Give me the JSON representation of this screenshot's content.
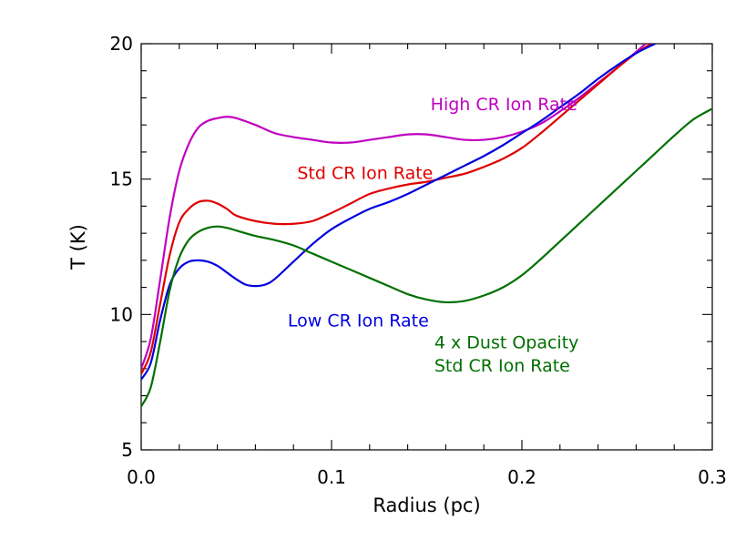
{
  "chart_data": {
    "type": "line",
    "xlabel": "Radius (pc)",
    "ylabel": "T (K)",
    "xlim": [
      0.0,
      0.3
    ],
    "ylim": [
      5,
      20
    ],
    "grid": false,
    "legend": "none",
    "x_ticks": [
      {
        "value": 0.0,
        "label": "0.0"
      },
      {
        "value": 0.1,
        "label": "0.1"
      },
      {
        "value": 0.2,
        "label": "0.2"
      },
      {
        "value": 0.3,
        "label": "0.3"
      }
    ],
    "y_ticks": [
      {
        "value": 5,
        "label": "5"
      },
      {
        "value": 10,
        "label": "10"
      },
      {
        "value": 15,
        "label": "15"
      },
      {
        "value": 20,
        "label": "20"
      }
    ],
    "series": [
      {
        "color": "#c000c0",
        "x": [
          0,
          0.005,
          0.01,
          0.015,
          0.02,
          0.025,
          0.03,
          0.035,
          0.04,
          0.045,
          0.05,
          0.06,
          0.07,
          0.08,
          0.09,
          0.1,
          0.11,
          0.12,
          0.13,
          0.14,
          0.15,
          0.16,
          0.17,
          0.18,
          0.19,
          0.2,
          0.21,
          0.22,
          0.23,
          0.24,
          0.25,
          0.26,
          0.265
        ],
        "y": [
          8.0,
          9.1,
          11.3,
          13.6,
          15.3,
          16.3,
          16.9,
          17.15,
          17.25,
          17.3,
          17.25,
          17.0,
          16.7,
          16.55,
          16.45,
          16.35,
          16.35,
          16.45,
          16.55,
          16.65,
          16.65,
          16.55,
          16.45,
          16.45,
          16.55,
          16.75,
          17.05,
          17.5,
          18.0,
          18.55,
          19.1,
          19.7,
          20.0
        ]
      },
      {
        "color": "#e00000",
        "x": [
          0,
          0.005,
          0.01,
          0.015,
          0.02,
          0.025,
          0.03,
          0.035,
          0.04,
          0.045,
          0.05,
          0.06,
          0.07,
          0.08,
          0.09,
          0.1,
          0.11,
          0.12,
          0.13,
          0.14,
          0.15,
          0.16,
          0.17,
          0.18,
          0.19,
          0.2,
          0.21,
          0.22,
          0.23,
          0.24,
          0.25,
          0.26,
          0.268
        ],
        "y": [
          7.8,
          8.6,
          10.4,
          12.2,
          13.4,
          13.9,
          14.15,
          14.2,
          14.1,
          13.9,
          13.65,
          13.45,
          13.35,
          13.35,
          13.45,
          13.75,
          14.1,
          14.45,
          14.65,
          14.8,
          14.9,
          15.05,
          15.2,
          15.45,
          15.75,
          16.15,
          16.7,
          17.3,
          17.9,
          18.5,
          19.1,
          19.65,
          20.0
        ]
      },
      {
        "color": "#0000e0",
        "x": [
          0,
          0.005,
          0.01,
          0.015,
          0.02,
          0.025,
          0.03,
          0.035,
          0.04,
          0.045,
          0.05,
          0.055,
          0.06,
          0.065,
          0.07,
          0.08,
          0.09,
          0.1,
          0.11,
          0.12,
          0.13,
          0.14,
          0.15,
          0.16,
          0.17,
          0.18,
          0.19,
          0.2,
          0.21,
          0.22,
          0.23,
          0.24,
          0.25,
          0.26,
          0.27
        ],
        "y": [
          7.6,
          8.2,
          9.8,
          11.1,
          11.7,
          11.95,
          12.0,
          11.95,
          11.8,
          11.55,
          11.3,
          11.1,
          11.05,
          11.1,
          11.3,
          11.95,
          12.6,
          13.15,
          13.55,
          13.9,
          14.15,
          14.45,
          14.8,
          15.15,
          15.5,
          15.85,
          16.25,
          16.7,
          17.15,
          17.65,
          18.15,
          18.7,
          19.2,
          19.65,
          20.0
        ]
      },
      {
        "color": "#007000",
        "x": [
          0,
          0.005,
          0.01,
          0.015,
          0.02,
          0.025,
          0.03,
          0.035,
          0.04,
          0.045,
          0.05,
          0.06,
          0.07,
          0.08,
          0.09,
          0.1,
          0.11,
          0.12,
          0.13,
          0.14,
          0.15,
          0.16,
          0.17,
          0.18,
          0.19,
          0.2,
          0.21,
          0.22,
          0.23,
          0.24,
          0.25,
          0.26,
          0.27,
          0.28,
          0.29,
          0.3
        ],
        "y": [
          6.6,
          7.3,
          9.0,
          10.9,
          12.1,
          12.75,
          13.05,
          13.2,
          13.25,
          13.2,
          13.1,
          12.9,
          12.75,
          12.55,
          12.25,
          11.95,
          11.65,
          11.35,
          11.05,
          10.75,
          10.55,
          10.45,
          10.5,
          10.7,
          11.0,
          11.45,
          12.05,
          12.7,
          13.35,
          14.0,
          14.65,
          15.3,
          15.95,
          16.6,
          17.2,
          17.6
        ]
      }
    ],
    "annotations": [
      {
        "text": "High CR Ion Rate",
        "color": "#c000c0",
        "x": 0.152,
        "y": 17.55
      },
      {
        "text": "Std CR Ion Rate",
        "color": "#e00000",
        "x": 0.082,
        "y": 15.0
      },
      {
        "text": "Low CR Ion Rate",
        "color": "#0000e0",
        "x": 0.077,
        "y": 9.55
      },
      {
        "text": "4 x Dust Opacity",
        "color": "#007000",
        "x": 0.154,
        "y": 8.75
      },
      {
        "text": "Std CR Ion Rate",
        "color": "#007000",
        "x": 0.154,
        "y": 7.9
      }
    ]
  }
}
